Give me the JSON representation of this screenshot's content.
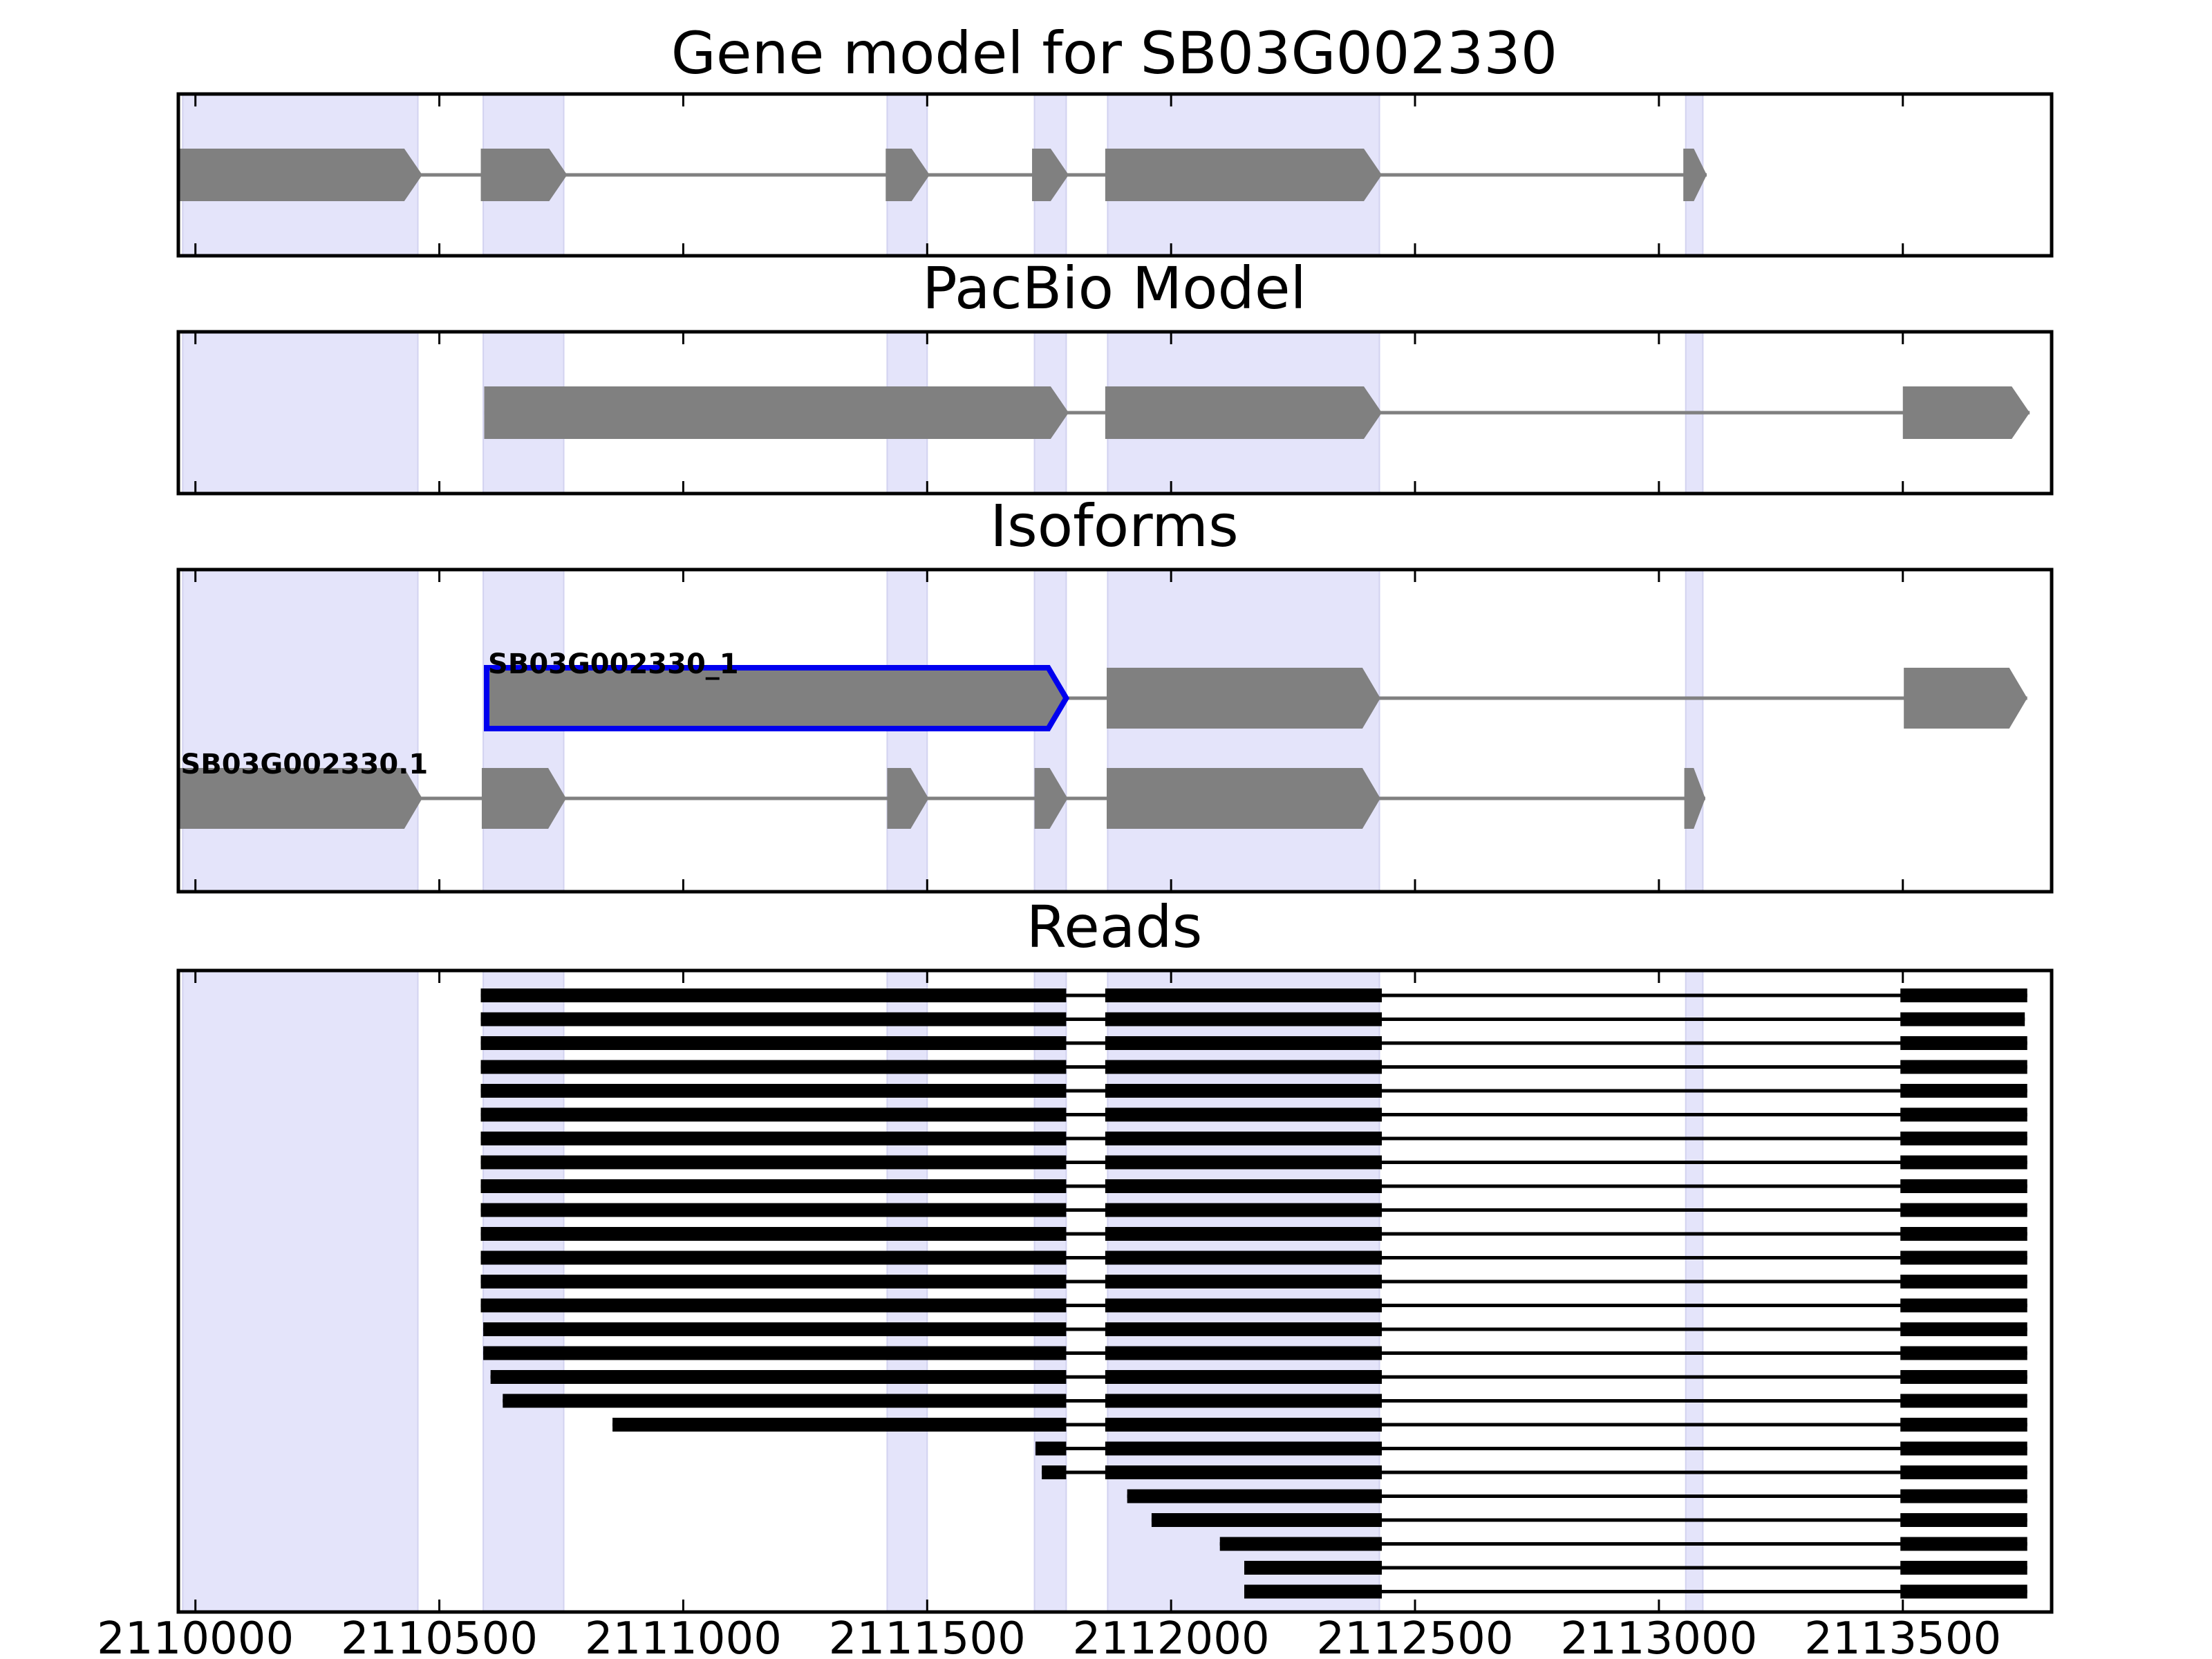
{
  "chart_data": {
    "type": "gene-track",
    "title": "Gene model for SB03G002330",
    "x_ticks": [
      2110000,
      2110500,
      2111000,
      2111500,
      2112000,
      2112500,
      2113000,
      2113500
    ],
    "x_tick_labels": [
      "2110000",
      "2110500",
      "2111000",
      "2111500",
      "2112000",
      "2112500",
      "2113000",
      "2113500"
    ],
    "xlim": [
      2109965,
      2113805
    ],
    "highlight_color": "#e4e4fa",
    "exon_color": "#808080",
    "selected_color": "#0000ee",
    "read_color": "#000000",
    "highlight_regions": [
      [
        2109974,
        2110456
      ],
      [
        2110590,
        2110755
      ],
      [
        2111418,
        2111500
      ],
      [
        2111720,
        2111785
      ],
      [
        2111870,
        2112427
      ],
      [
        2113055,
        2113090
      ]
    ],
    "panels": [
      {
        "title": "Gene model for SB03G002330",
        "transcripts": [
          {
            "label": "",
            "selected": false,
            "exons": [
              [
                2109967,
                2110465
              ],
              [
                2110585,
                2110762
              ],
              [
                2111415,
                2111505
              ],
              [
                2111715,
                2111790
              ],
              [
                2111865,
                2112432
              ],
              [
                2113050,
                2113098
              ]
            ]
          }
        ]
      },
      {
        "title": "PacBio Model",
        "transcripts": [
          {
            "label": "",
            "selected": false,
            "exons": [
              [
                2110592,
                2111790
              ],
              [
                2111865,
                2112432
              ],
              [
                2113500,
                2113760
              ]
            ]
          }
        ]
      },
      {
        "title": "Isoforms",
        "transcripts": [
          {
            "label": "SB03G002330_1",
            "selected": true,
            "exons": [
              [
                2110597,
                2111785
              ],
              [
                2111868,
                2112429
              ],
              [
                2113502,
                2113755
              ]
            ]
          },
          {
            "label": "SB03G002330.1",
            "selected": false,
            "exons": [
              [
                2109967,
                2110465
              ],
              [
                2110587,
                2110760
              ],
              [
                2111418,
                2111503
              ],
              [
                2111720,
                2111788
              ],
              [
                2111868,
                2112429
              ],
              [
                2113052,
                2113095
              ]
            ]
          }
        ]
      },
      {
        "title": "Reads",
        "reads": [
          [
            [
              2110585,
              2111785
            ],
            [
              2111865,
              2112432
            ],
            [
              2113495,
              2113755
            ]
          ],
          [
            [
              2110585,
              2111785
            ],
            [
              2111865,
              2112432
            ],
            [
              2113495,
              2113750
            ]
          ],
          [
            [
              2110585,
              2111785
            ],
            [
              2111865,
              2112432
            ],
            [
              2113495,
              2113755
            ]
          ],
          [
            [
              2110585,
              2111785
            ],
            [
              2111865,
              2112432
            ],
            [
              2113495,
              2113755
            ]
          ],
          [
            [
              2110585,
              2111785
            ],
            [
              2111865,
              2112432
            ],
            [
              2113495,
              2113755
            ]
          ],
          [
            [
              2110585,
              2111785
            ],
            [
              2111865,
              2112432
            ],
            [
              2113495,
              2113755
            ]
          ],
          [
            [
              2110585,
              2111785
            ],
            [
              2111865,
              2112432
            ],
            [
              2113495,
              2113755
            ]
          ],
          [
            [
              2110585,
              2111785
            ],
            [
              2111865,
              2112432
            ],
            [
              2113495,
              2113755
            ]
          ],
          [
            [
              2110585,
              2111785
            ],
            [
              2111865,
              2112432
            ],
            [
              2113495,
              2113755
            ]
          ],
          [
            [
              2110585,
              2111785
            ],
            [
              2111865,
              2112432
            ],
            [
              2113495,
              2113755
            ]
          ],
          [
            [
              2110585,
              2111785
            ],
            [
              2111865,
              2112432
            ],
            [
              2113495,
              2113755
            ]
          ],
          [
            [
              2110585,
              2111785
            ],
            [
              2111865,
              2112432
            ],
            [
              2113495,
              2113755
            ]
          ],
          [
            [
              2110585,
              2111785
            ],
            [
              2111865,
              2112432
            ],
            [
              2113495,
              2113755
            ]
          ],
          [
            [
              2110585,
              2111785
            ],
            [
              2111865,
              2112432
            ],
            [
              2113495,
              2113755
            ]
          ],
          [
            [
              2110590,
              2111785
            ],
            [
              2111865,
              2112432
            ],
            [
              2113495,
              2113755
            ]
          ],
          [
            [
              2110590,
              2111785
            ],
            [
              2111865,
              2112432
            ],
            [
              2113495,
              2113755
            ]
          ],
          [
            [
              2110605,
              2111785
            ],
            [
              2111865,
              2112432
            ],
            [
              2113495,
              2113755
            ]
          ],
          [
            [
              2110630,
              2111785
            ],
            [
              2111865,
              2112432
            ],
            [
              2113495,
              2113755
            ]
          ],
          [
            [
              2110855,
              2111785
            ],
            [
              2111865,
              2112432
            ],
            [
              2113495,
              2113755
            ]
          ],
          [
            [
              2111722,
              2111785
            ],
            [
              2111865,
              2112432
            ],
            [
              2113495,
              2113755
            ]
          ],
          [
            [
              2111735,
              2111785
            ],
            [
              2111865,
              2112432
            ],
            [
              2113495,
              2113755
            ]
          ],
          [
            [
              2111910,
              2112432
            ],
            [
              2113495,
              2113755
            ]
          ],
          [
            [
              2111960,
              2112432
            ],
            [
              2113495,
              2113755
            ]
          ],
          [
            [
              2112100,
              2112432
            ],
            [
              2113495,
              2113755
            ]
          ],
          [
            [
              2112150,
              2112432
            ],
            [
              2113495,
              2113755
            ]
          ],
          [
            [
              2112150,
              2112432
            ],
            [
              2113495,
              2113755
            ]
          ]
        ]
      }
    ]
  }
}
